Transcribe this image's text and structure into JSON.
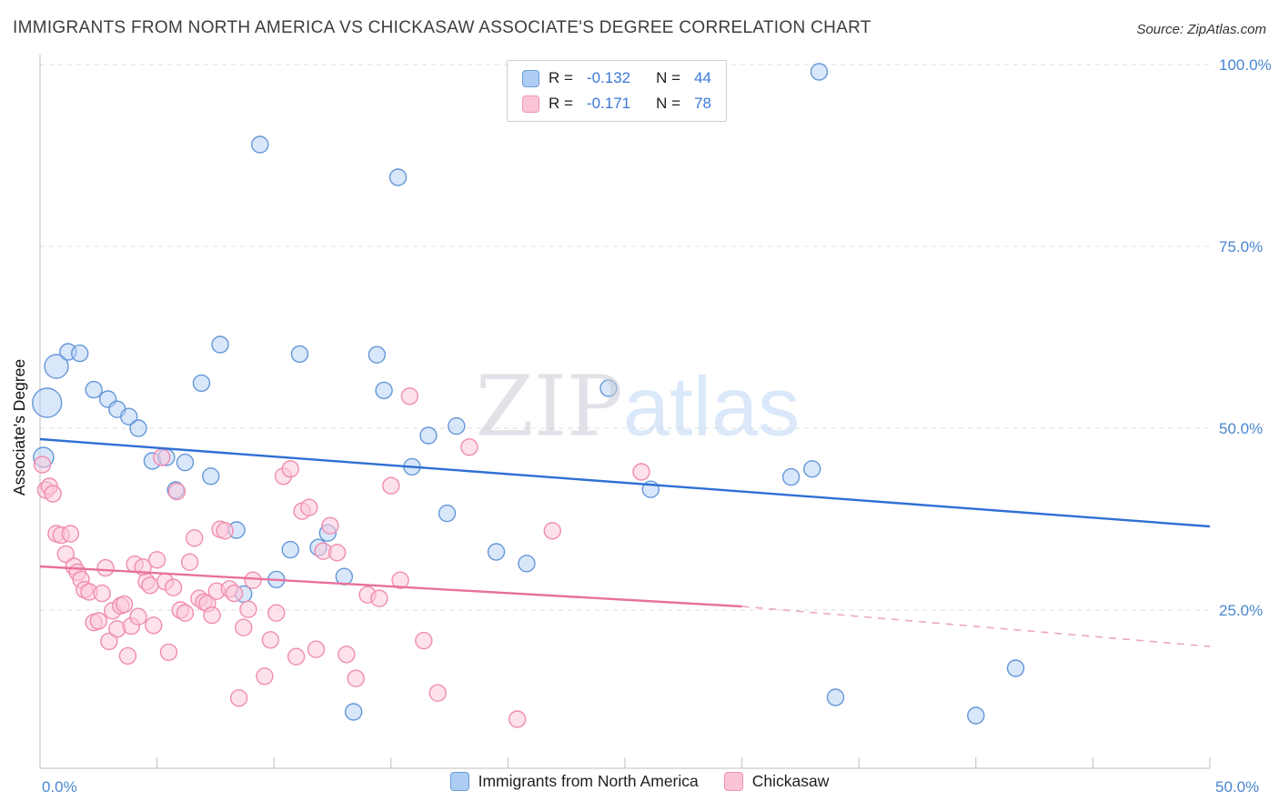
{
  "header": {
    "title": "IMMIGRANTS FROM NORTH AMERICA VS CHICKASAW ASSOCIATE'S DEGREE CORRELATION CHART",
    "source": "Source: ZipAtlas.com"
  },
  "watermark": {
    "part1": "ZIP",
    "part2": "atlas"
  },
  "chart_data": {
    "type": "scatter",
    "title": "Immigrants from North America vs Chickasaw Associate's Degree Correlation Chart",
    "xlabel": "",
    "ylabel": "Associate's Degree",
    "xlim": [
      0,
      50
    ],
    "ylim": [
      0,
      100
    ],
    "x_unit": "%",
    "y_unit": "%",
    "grid": "horizontal-dashed",
    "legend_position": "bottom-center",
    "y_gridlines": [
      {
        "value": 100,
        "label": "100.0%"
      },
      {
        "value": 75,
        "label": "75.0%"
      },
      {
        "value": 50,
        "label": "50.0%"
      },
      {
        "value": 25,
        "label": "25.0%"
      }
    ],
    "x_axis_labels": [
      {
        "value": 0,
        "label": "0.0%"
      },
      {
        "value": 50,
        "label": "50.0%"
      }
    ],
    "x_tick_values": [
      0,
      5,
      10,
      15,
      20,
      25,
      30,
      35,
      40,
      45,
      50
    ],
    "colors": {
      "grid": "#dcdcdc",
      "axis": "#bfbfbf",
      "axis_label": "#4a86d1"
    },
    "legend": {
      "rows": [
        {
          "series": "Immigrants from North America",
          "r_label": "R =",
          "r_value": "-0.132",
          "n_label": "N =",
          "n_value": "44"
        },
        {
          "series": "Chickasaw",
          "r_label": "R =",
          "r_value": "-0.171",
          "n_label": "N =",
          "n_value": "78"
        }
      ]
    },
    "series": [
      {
        "id": "immigrants",
        "name": "Immigrants from North America",
        "stroke": "#6497d8",
        "fill": "#b4d0f5",
        "fill_opacity": 0.5,
        "points": [
          [
            0.15,
            46,
            11
          ],
          [
            0.3,
            53.5,
            16
          ],
          [
            0.7,
            58.5,
            13
          ],
          [
            1.2,
            60.5
          ],
          [
            1.7,
            60.3
          ],
          [
            2.3,
            55.3
          ],
          [
            2.9,
            54
          ],
          [
            3.3,
            52.6
          ],
          [
            3.8,
            51.6
          ],
          [
            4.2,
            50
          ],
          [
            4.8,
            45.5
          ],
          [
            5.4,
            46
          ],
          [
            5.8,
            41.5
          ],
          [
            6.2,
            45.3
          ],
          [
            6.9,
            56.2
          ],
          [
            7.3,
            43.4
          ],
          [
            7.7,
            61.5
          ],
          [
            8.4,
            36
          ],
          [
            8.7,
            27.2
          ],
          [
            9.4,
            89
          ],
          [
            10.1,
            29.2
          ],
          [
            10.7,
            33.3
          ],
          [
            11.1,
            60.2
          ],
          [
            11.9,
            33.6
          ],
          [
            12.3,
            35.6
          ],
          [
            13.0,
            29.6
          ],
          [
            13.4,
            11
          ],
          [
            14.4,
            60.1
          ],
          [
            14.7,
            55.2
          ],
          [
            15.3,
            84.5
          ],
          [
            15.9,
            44.7
          ],
          [
            16.6,
            49
          ],
          [
            17.4,
            38.3
          ],
          [
            17.8,
            50.3
          ],
          [
            19.5,
            33
          ],
          [
            20.8,
            31.4
          ],
          [
            24.3,
            55.5
          ],
          [
            26.1,
            41.6
          ],
          [
            32.1,
            43.3
          ],
          [
            33.0,
            44.4
          ],
          [
            33.3,
            99
          ],
          [
            34.0,
            13
          ],
          [
            40.0,
            10.5
          ],
          [
            41.7,
            17
          ]
        ]
      },
      {
        "id": "chickasaw",
        "name": "Chickasaw",
        "stroke": "#f08cb0",
        "fill": "#fbc9da",
        "fill_opacity": 0.55,
        "points": [
          [
            0.1,
            45
          ],
          [
            0.25,
            41.5
          ],
          [
            0.4,
            42
          ],
          [
            0.55,
            41
          ],
          [
            0.7,
            35.5
          ],
          [
            0.9,
            35.3
          ],
          [
            1.1,
            32.7
          ],
          [
            1.3,
            35.5
          ],
          [
            1.45,
            31
          ],
          [
            1.6,
            30.2
          ],
          [
            1.75,
            29.2
          ],
          [
            1.9,
            27.8
          ],
          [
            2.1,
            27.5
          ],
          [
            2.3,
            23.3
          ],
          [
            2.5,
            23.5
          ],
          [
            2.65,
            27.3
          ],
          [
            2.8,
            30.8
          ],
          [
            2.95,
            20.7
          ],
          [
            3.1,
            24.9
          ],
          [
            3.3,
            22.4
          ],
          [
            3.45,
            25.6
          ],
          [
            3.6,
            25.8
          ],
          [
            3.75,
            18.7
          ],
          [
            3.9,
            22.8
          ],
          [
            4.05,
            31.3
          ],
          [
            4.2,
            24.1
          ],
          [
            4.4,
            30.9
          ],
          [
            4.55,
            28.9
          ],
          [
            4.7,
            28.4
          ],
          [
            4.85,
            22.9
          ],
          [
            5.0,
            31.9
          ],
          [
            5.2,
            46
          ],
          [
            5.35,
            28.9
          ],
          [
            5.5,
            19.2
          ],
          [
            5.7,
            28.1
          ],
          [
            5.85,
            41.3
          ],
          [
            6.0,
            25
          ],
          [
            6.2,
            24.6
          ],
          [
            6.4,
            31.6
          ],
          [
            6.6,
            34.9
          ],
          [
            6.8,
            26.6
          ],
          [
            7.0,
            26.1
          ],
          [
            7.15,
            25.9
          ],
          [
            7.35,
            24.3
          ],
          [
            7.55,
            27.6
          ],
          [
            7.7,
            36.1
          ],
          [
            7.9,
            35.9
          ],
          [
            8.1,
            27.9
          ],
          [
            8.3,
            27.3
          ],
          [
            8.5,
            12.9
          ],
          [
            8.7,
            22.6
          ],
          [
            8.9,
            25.1
          ],
          [
            9.1,
            29.1
          ],
          [
            9.6,
            15.9
          ],
          [
            9.85,
            20.9
          ],
          [
            10.1,
            24.6
          ],
          [
            10.4,
            43.4
          ],
          [
            10.7,
            44.4
          ],
          [
            10.95,
            18.6
          ],
          [
            11.2,
            38.6
          ],
          [
            11.5,
            39.1
          ],
          [
            11.8,
            19.6
          ],
          [
            12.1,
            33.1
          ],
          [
            12.4,
            36.6
          ],
          [
            12.7,
            32.9
          ],
          [
            13.1,
            18.9
          ],
          [
            13.5,
            15.6
          ],
          [
            14.0,
            27.1
          ],
          [
            14.5,
            26.6
          ],
          [
            15.0,
            42.1
          ],
          [
            15.4,
            29.1
          ],
          [
            15.8,
            54.4
          ],
          [
            16.4,
            20.8
          ],
          [
            17.0,
            13.6
          ],
          [
            18.35,
            47.4
          ],
          [
            20.4,
            10
          ],
          [
            21.9,
            35.9
          ],
          [
            25.7,
            44
          ]
        ]
      }
    ],
    "trends": [
      {
        "id": "immigrants",
        "color": "#2f6fd4",
        "style": "solid",
        "width": 2.4,
        "x1": 0,
        "y1": 48.5,
        "x2": 50,
        "y2": 36.5
      },
      {
        "id": "chickasaw-solid",
        "color": "#e8719a",
        "style": "solid",
        "width": 2.4,
        "x1": 0,
        "y1": 31,
        "x2": 30,
        "y2": 25.5
      },
      {
        "id": "chickasaw-dashed",
        "color": "#eda8bf",
        "style": "dashed",
        "width": 1.6,
        "x1": 30,
        "y1": 25.5,
        "x2": 50,
        "y2": 20
      }
    ]
  }
}
